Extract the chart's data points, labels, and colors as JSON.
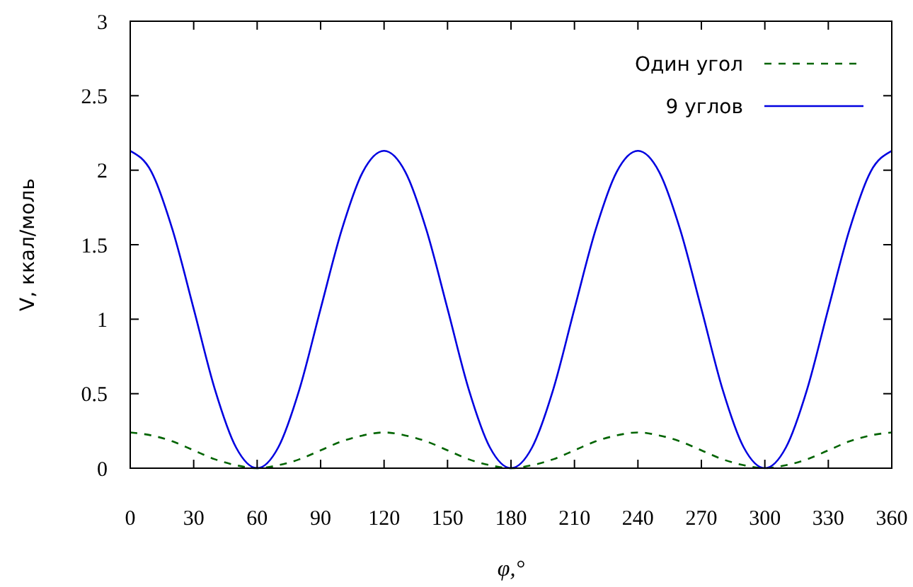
{
  "chart_data": {
    "type": "line",
    "xlabel": "φ,°",
    "ylabel": "V, ккал/моль",
    "x": [
      0,
      10,
      20,
      30,
      40,
      50,
      60,
      70,
      80,
      90,
      100,
      110,
      120,
      130,
      140,
      150,
      160,
      170,
      180,
      190,
      200,
      210,
      220,
      230,
      240,
      250,
      260,
      270,
      280,
      290,
      300,
      310,
      320,
      330,
      340,
      350,
      360
    ],
    "series": [
      {
        "name": "Один угол",
        "color": "#006400",
        "line_style": "dashed",
        "values": [
          0.24,
          0.22,
          0.18,
          0.12,
          0.06,
          0.02,
          0,
          0.02,
          0.06,
          0.12,
          0.18,
          0.22,
          0.24,
          0.22,
          0.18,
          0.12,
          0.06,
          0.02,
          0,
          0.02,
          0.06,
          0.12,
          0.18,
          0.22,
          0.24,
          0.22,
          0.18,
          0.12,
          0.06,
          0.02,
          0,
          0.02,
          0.06,
          0.12,
          0.18,
          0.22,
          0.24
        ]
      },
      {
        "name": "9 углов",
        "color": "#0000e0",
        "line_style": "solid",
        "values": [
          2.13,
          1.99,
          1.6,
          1.07,
          0.53,
          0.14,
          0,
          0.14,
          0.53,
          1.07,
          1.6,
          1.99,
          2.13,
          1.99,
          1.6,
          1.07,
          0.53,
          0.14,
          0,
          0.14,
          0.53,
          1.07,
          1.6,
          1.99,
          2.13,
          1.99,
          1.6,
          1.07,
          0.53,
          0.14,
          0,
          0.14,
          0.53,
          1.07,
          1.6,
          1.99,
          2.13
        ]
      }
    ],
    "xlim": [
      0,
      360
    ],
    "xticks": [
      0,
      30,
      60,
      90,
      120,
      150,
      180,
      210,
      240,
      270,
      300,
      330,
      360
    ],
    "ylim": [
      0,
      3
    ],
    "yticks": [
      0,
      0.5,
      1,
      1.5,
      2,
      2.5,
      3
    ],
    "grid": false,
    "legend": "top right",
    "marker": "none"
  }
}
